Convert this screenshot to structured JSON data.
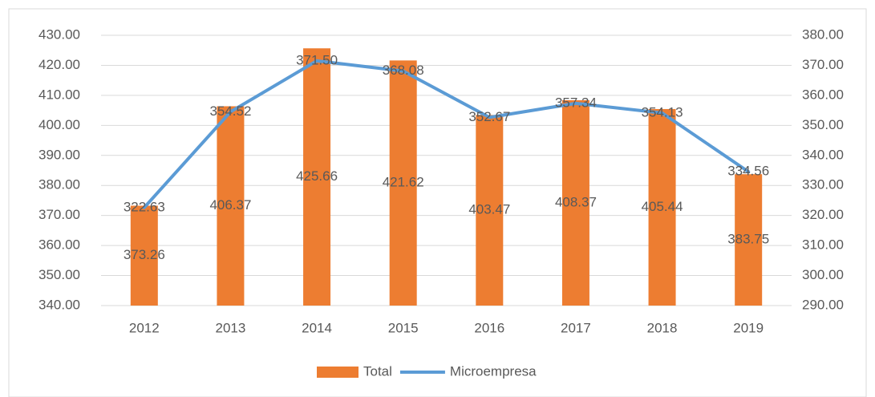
{
  "chart_data": {
    "type": "bar_line",
    "categories": [
      "2012",
      "2013",
      "2014",
      "2015",
      "2016",
      "2017",
      "2018",
      "2019"
    ],
    "series": [
      {
        "name": "Total",
        "type": "bar",
        "color": "#ed7d31",
        "values": [
          373.26,
          406.37,
          425.66,
          421.62,
          403.47,
          408.37,
          405.44,
          383.75
        ]
      },
      {
        "name": "Microempresa",
        "type": "line",
        "axis": "y2",
        "color": "#5b9bd5",
        "values": [
          322.63,
          354.52,
          371.5,
          368.08,
          352.67,
          357.34,
          354.13,
          334.56
        ],
        "value_labels": [
          "322.63",
          "354.52",
          "371.50",
          "368.08",
          "352.67",
          "357.34",
          "354.13",
          "334.56"
        ]
      }
    ],
    "ylim": [
      340,
      430
    ],
    "yticks": [
      {
        "value": 340,
        "label": "340.00"
      },
      {
        "value": 350,
        "label": "350.00"
      },
      {
        "value": 360,
        "label": "360.00"
      },
      {
        "value": 370,
        "label": "370.00"
      },
      {
        "value": 380,
        "label": "380.00"
      },
      {
        "value": 390,
        "label": "390.00"
      },
      {
        "value": 400,
        "label": "400.00"
      },
      {
        "value": 410,
        "label": "410.00"
      },
      {
        "value": 420,
        "label": "420.00"
      },
      {
        "value": 430,
        "label": "430.00"
      }
    ],
    "y2lim": [
      290,
      380
    ],
    "y2ticks": [
      {
        "value": 290,
        "label": "290.00"
      },
      {
        "value": 300,
        "label": "300.00"
      },
      {
        "value": 310,
        "label": "310.00"
      },
      {
        "value": 320,
        "label": "320.00"
      },
      {
        "value": 330,
        "label": "330.00"
      },
      {
        "value": 340,
        "label": "340.00"
      },
      {
        "value": 350,
        "label": "350.00"
      },
      {
        "value": 360,
        "label": "360.00"
      },
      {
        "value": 370,
        "label": "370.00"
      },
      {
        "value": 380,
        "label": "380.00"
      }
    ],
    "grid": true,
    "legend": "bottom"
  }
}
